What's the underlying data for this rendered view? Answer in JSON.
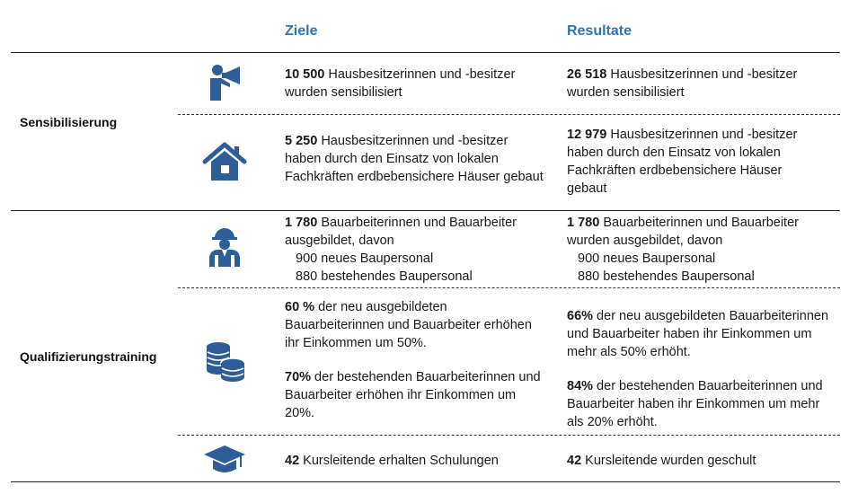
{
  "header": {
    "goals": "Ziele",
    "results": "Resultate"
  },
  "categories": {
    "awareness": "Sensibilisierung",
    "training": "Qualifizierungstraining"
  },
  "rows": {
    "megaphone": {
      "icon": "megaphone-person-icon",
      "goal": {
        "num": "10 500",
        "text": " Hausbesitzerinnen und -besitzer wurden sensibilisiert"
      },
      "result": {
        "num": "26 518",
        "text": " Hausbesitzerinnen und -besitzer wurden sensibilisiert"
      }
    },
    "house": {
      "icon": "house-icon",
      "goal": {
        "num": "5 250",
        "text": " Hausbesitzerinnen und -besitzer haben durch den Einsatz von lokalen Fachkräften erdbebensichere Häuser gebaut"
      },
      "result": {
        "num": "12 979",
        "text": " Hausbesitzerinnen und -besitzer haben durch den Einsatz von lokalen Fachkräften erdbebensichere Häuser gebaut"
      }
    },
    "worker": {
      "icon": "construction-worker-icon",
      "goal": {
        "num": "1 780",
        "text": " Bauarbeiterinnen und Bauarbeiter ausgebildet, davon",
        "sub1": "900 neues Baupersonal",
        "sub2": "880 bestehendes Baupersonal"
      },
      "result": {
        "num": "1 780",
        "text": " Bauarbeiterinnen und Bauarbeiter wurden ausgebildet, davon",
        "sub1": "900 neues Baupersonal",
        "sub2": "880 bestehendes Baupersonal"
      }
    },
    "coins": {
      "icon": "coins-icon",
      "goal": {
        "num1": "60 %",
        "text1": " der neu ausgebildeten Bauarbeiterinnen und Bauarbeiter erhöhen ihr Einkommen um 50%.",
        "num2": "70%",
        "text2": " der bestehenden Bauarbeiterinnen und Bauarbeiter erhöhen ihr Einkommen um 20%."
      },
      "result": {
        "num1": "66%",
        "text1": " der neu ausgebildeten Bauarbeiterinnen und Bauarbeiter haben ihr Einkommen um mehr als 50% erhöht.",
        "num2": "84%",
        "text2": " der bestehenden Bauarbeiterinnen und Bauarbeiter haben ihr Einkommen um mehr als 20% erhöht."
      }
    },
    "graduation": {
      "icon": "graduation-cap-icon",
      "goal": {
        "num": "42",
        "text": " Kursleitende erhalten Schulungen"
      },
      "result": {
        "num": "42",
        "text": " Kursleitende wurden geschult"
      }
    }
  },
  "colors": {
    "header": "#2e75b6",
    "icon": "#2e5d9a"
  }
}
